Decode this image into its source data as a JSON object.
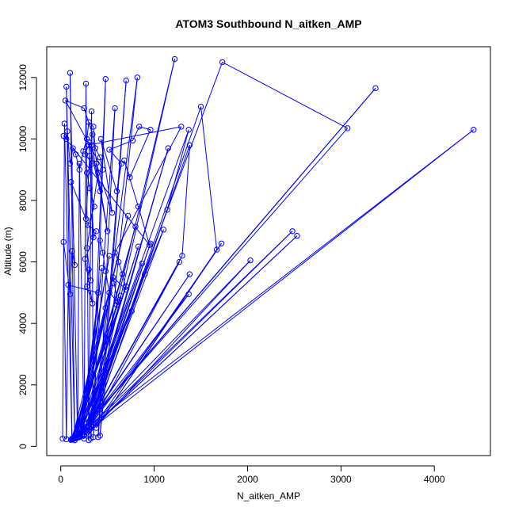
{
  "chart_data": {
    "type": "line",
    "title": "ATOM3 Southbound N_aitken_AMP",
    "xlabel": "N_aitken_AMP",
    "ylabel": "Altitude (m)",
    "xlim": [
      -150,
      4600
    ],
    "ylim": [
      -300,
      13000
    ],
    "x_ticks": [
      0,
      1000,
      2000,
      3000,
      4000
    ],
    "y_ticks": [
      0,
      2000,
      4000,
      6000,
      8000,
      10000,
      12000
    ],
    "x_tick_labels": [
      "0",
      "1000",
      "2000",
      "3000",
      "4000"
    ],
    "y_tick_labels": [
      "0",
      "2000",
      "4000",
      "6000",
      "8000",
      "10000",
      "12000"
    ],
    "color": "#0000ff",
    "grid": false,
    "points": [
      {
        "x": 20,
        "y": 250
      },
      {
        "x": 40,
        "y": 10500
      },
      {
        "x": 120,
        "y": 250
      },
      {
        "x": 60,
        "y": 11700
      },
      {
        "x": 150,
        "y": 200
      },
      {
        "x": 100,
        "y": 12150
      },
      {
        "x": 180,
        "y": 300
      },
      {
        "x": 200,
        "y": 9200
      },
      {
        "x": 250,
        "y": 250
      },
      {
        "x": 270,
        "y": 11800
      },
      {
        "x": 300,
        "y": 200
      },
      {
        "x": 330,
        "y": 10900
      },
      {
        "x": 350,
        "y": 300
      },
      {
        "x": 480,
        "y": 11950
      },
      {
        "x": 320,
        "y": 250
      },
      {
        "x": 580,
        "y": 11000
      },
      {
        "x": 400,
        "y": 300
      },
      {
        "x": 700,
        "y": 11900
      },
      {
        "x": 420,
        "y": 350
      },
      {
        "x": 820,
        "y": 12000
      },
      {
        "x": 350,
        "y": 950
      },
      {
        "x": 1220,
        "y": 12600
      },
      {
        "x": 300,
        "y": 800
      },
      {
        "x": 1730,
        "y": 12500
      },
      {
        "x": 3070,
        "y": 10350
      },
      {
        "x": 250,
        "y": 600
      },
      {
        "x": 3370,
        "y": 11650
      },
      {
        "x": 200,
        "y": 400
      },
      {
        "x": 4420,
        "y": 10300
      },
      {
        "x": 300,
        "y": 500
      },
      {
        "x": 2530,
        "y": 6850
      },
      {
        "x": 250,
        "y": 350
      },
      {
        "x": 2480,
        "y": 7000
      },
      {
        "x": 200,
        "y": 300
      },
      {
        "x": 2030,
        "y": 6050
      },
      {
        "x": 300,
        "y": 400
      },
      {
        "x": 1720,
        "y": 6600
      },
      {
        "x": 380,
        "y": 600
      },
      {
        "x": 1670,
        "y": 6400
      },
      {
        "x": 1500,
        "y": 11050
      },
      {
        "x": 320,
        "y": 700
      },
      {
        "x": 1370,
        "y": 4950
      },
      {
        "x": 250,
        "y": 550
      },
      {
        "x": 1380,
        "y": 5600
      },
      {
        "x": 280,
        "y": 650
      },
      {
        "x": 1300,
        "y": 6200
      },
      {
        "x": 1380,
        "y": 9800
      },
      {
        "x": 350,
        "y": 800
      },
      {
        "x": 1270,
        "y": 6000
      },
      {
        "x": 330,
        "y": 900
      },
      {
        "x": 1140,
        "y": 7700
      },
      {
        "x": 1370,
        "y": 10300
      },
      {
        "x": 200,
        "y": 400
      },
      {
        "x": 1100,
        "y": 7050
      },
      {
        "x": 300,
        "y": 500
      },
      {
        "x": 1150,
        "y": 9700
      },
      {
        "x": 280,
        "y": 450
      },
      {
        "x": 960,
        "y": 6600
      },
      {
        "x": 250,
        "y": 380
      },
      {
        "x": 900,
        "y": 5600
      },
      {
        "x": 230,
        "y": 350
      },
      {
        "x": 870,
        "y": 5950
      },
      {
        "x": 200,
        "y": 300
      },
      {
        "x": 830,
        "y": 6500
      },
      {
        "x": 180,
        "y": 280
      },
      {
        "x": 800,
        "y": 7150
      },
      {
        "x": 160,
        "y": 260
      },
      {
        "x": 760,
        "y": 4400
      },
      {
        "x": 140,
        "y": 240
      },
      {
        "x": 720,
        "y": 7500
      },
      {
        "x": 120,
        "y": 220
      },
      {
        "x": 700,
        "y": 5200
      },
      {
        "x": 110,
        "y": 210
      },
      {
        "x": 640,
        "y": 4900
      },
      {
        "x": 130,
        "y": 240
      },
      {
        "x": 600,
        "y": 4600
      },
      {
        "x": 150,
        "y": 260
      },
      {
        "x": 560,
        "y": 5300
      },
      {
        "x": 170,
        "y": 280
      },
      {
        "x": 520,
        "y": 6200
      },
      {
        "x": 190,
        "y": 300
      },
      {
        "x": 480,
        "y": 4500
      },
      {
        "x": 210,
        "y": 320
      },
      {
        "x": 440,
        "y": 5800
      },
      {
        "x": 230,
        "y": 340
      },
      {
        "x": 400,
        "y": 5000
      },
      {
        "x": 80,
        "y": 5250
      },
      {
        "x": 60,
        "y": 230
      },
      {
        "x": 30,
        "y": 6650
      },
      {
        "x": 100,
        "y": 4950
      },
      {
        "x": 120,
        "y": 6350
      },
      {
        "x": 150,
        "y": 5900
      },
      {
        "x": 110,
        "y": 8600
      },
      {
        "x": 270,
        "y": 7400
      },
      {
        "x": 310,
        "y": 9450
      },
      {
        "x": 350,
        "y": 6800
      },
      {
        "x": 300,
        "y": 9900
      },
      {
        "x": 420,
        "y": 8300
      },
      {
        "x": 330,
        "y": 9800
      },
      {
        "x": 500,
        "y": 7000
      },
      {
        "x": 380,
        "y": 9200
      },
      {
        "x": 550,
        "y": 7600
      },
      {
        "x": 430,
        "y": 10000
      },
      {
        "x": 600,
        "y": 8300
      },
      {
        "x": 650,
        "y": 9200
      },
      {
        "x": 520,
        "y": 9650
      },
      {
        "x": 770,
        "y": 9950
      },
      {
        "x": 840,
        "y": 10400
      },
      {
        "x": 960,
        "y": 10300
      },
      {
        "x": 740,
        "y": 8750
      },
      {
        "x": 680,
        "y": 9300
      },
      {
        "x": 830,
        "y": 7800
      },
      {
        "x": 950,
        "y": 6550
      },
      {
        "x": 30,
        "y": 10100
      },
      {
        "x": 60,
        "y": 10000
      },
      {
        "x": 70,
        "y": 10250
      },
      {
        "x": 100,
        "y": 9200
      },
      {
        "x": 130,
        "y": 9700
      },
      {
        "x": 160,
        "y": 9500
      },
      {
        "x": 200,
        "y": 9000
      },
      {
        "x": 240,
        "y": 9600
      },
      {
        "x": 280,
        "y": 10000
      },
      {
        "x": 300,
        "y": 10550
      },
      {
        "x": 350,
        "y": 10400
      },
      {
        "x": 370,
        "y": 9700
      },
      {
        "x": 420,
        "y": 9400
      },
      {
        "x": 450,
        "y": 9000
      },
      {
        "x": 50,
        "y": 11250
      },
      {
        "x": 250,
        "y": 11000
      },
      {
        "x": 340,
        "y": 10150
      },
      {
        "x": 400,
        "y": 8900
      },
      {
        "x": 280,
        "y": 6450
      },
      {
        "x": 320,
        "y": 5400
      },
      {
        "x": 300,
        "y": 5750
      },
      {
        "x": 280,
        "y": 5200
      },
      {
        "x": 340,
        "y": 4650
      },
      {
        "x": 260,
        "y": 6100
      },
      {
        "x": 380,
        "y": 7000
      },
      {
        "x": 290,
        "y": 7200
      },
      {
        "x": 360,
        "y": 7800
      },
      {
        "x": 310,
        "y": 8400
      },
      {
        "x": 280,
        "y": 8900
      },
      {
        "x": 340,
        "y": 9200
      },
      {
        "x": 260,
        "y": 9500
      },
      {
        "x": 300,
        "y": 9800
      },
      {
        "x": 1290,
        "y": 10400
      },
      {
        "x": 580,
        "y": 6300
      },
      {
        "x": 620,
        "y": 6000
      },
      {
        "x": 660,
        "y": 5600
      },
      {
        "x": 700,
        "y": 5100
      },
      {
        "x": 560,
        "y": 5500
      },
      {
        "x": 610,
        "y": 4700
      },
      {
        "x": 520,
        "y": 5000
      },
      {
        "x": 480,
        "y": 5700
      },
      {
        "x": 450,
        "y": 6300
      },
      {
        "x": 420,
        "y": 6700
      }
    ]
  }
}
